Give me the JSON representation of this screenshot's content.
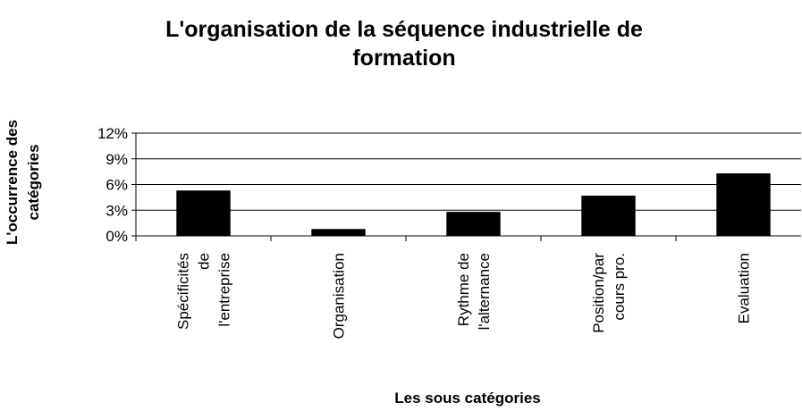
{
  "chart_data": {
    "type": "bar",
    "title": "L'organisation de la séquence industrielle de formation",
    "x_label": "Les sous catégories",
    "y_label": "L'occurrence des catégories",
    "categories": [
      "Spécificités de l'entreprise",
      "Organisation",
      "Rythme de l'alternance",
      "Position/par cours pro.",
      "Evaluation"
    ],
    "values": [
      5.3,
      0.8,
      2.8,
      4.7,
      7.3
    ],
    "color": "#000000",
    "ylim": [
      0,
      12
    ],
    "yticks": [
      {
        "value": 0,
        "label": "0%"
      },
      {
        "value": 3,
        "label": "3%"
      },
      {
        "value": 6,
        "label": "6%"
      },
      {
        "value": 9,
        "label": "9%"
      },
      {
        "value": 12,
        "label": "12%"
      }
    ],
    "grid": true
  }
}
